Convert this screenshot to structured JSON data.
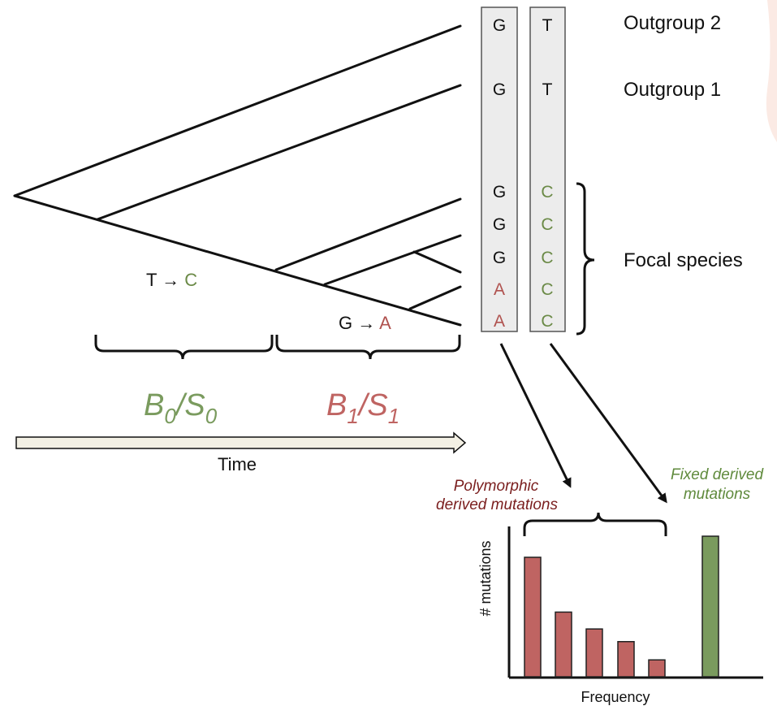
{
  "sequences": {
    "column1": [
      "G",
      "G",
      "G",
      "G",
      "G",
      "A",
      "A"
    ],
    "column2": [
      "T",
      "T",
      "C",
      "C",
      "C",
      "C",
      "C"
    ]
  },
  "labels": {
    "outgroup2": "Outgroup 2",
    "outgroup1": "Outgroup 1",
    "focal": "Focal species",
    "mutation0": {
      "from": "T",
      "arrow": "→",
      "to": "C"
    },
    "mutation1": {
      "from": "G",
      "arrow": "→",
      "to": "A"
    },
    "branch0": {
      "b": "B",
      "bsub": "0",
      "slash": "/",
      "s": "S",
      "ssub": "0"
    },
    "branch1": {
      "b": "B",
      "bsub": "1",
      "slash": "/",
      "s": "S",
      "ssub": "1"
    },
    "time": "Time",
    "polymorphic_line1": "Polymorphic",
    "polymorphic_line2": "derived mutations",
    "fixed_line1": "Fixed derived",
    "fixed_line2": "mutations",
    "ylabel": "# mutations",
    "xlabel": "Frequency"
  },
  "colors": {
    "ancestral": "#6b8a47",
    "derived": "#b0524f",
    "poly_text": "#7a1e1e",
    "fixed_text": "#5f8a3c",
    "bar_red": "#bf6462",
    "bar_green": "#7a9b5e",
    "box_fill": "#ececec"
  },
  "chart_data": {
    "type": "bar",
    "xlabel": "Frequency",
    "ylabel": "# mutations",
    "series": [
      {
        "name": "Polymorphic derived mutations",
        "values": [
          0.85,
          0.46,
          0.34,
          0.25,
          0.12
        ]
      },
      {
        "name": "Fixed derived mutations",
        "values": [
          1.0
        ]
      }
    ]
  }
}
